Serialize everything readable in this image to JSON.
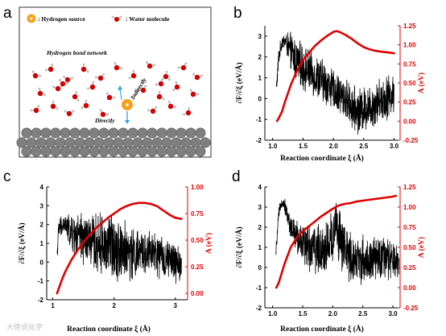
{
  "panel_letters": [
    "a",
    "b",
    "c",
    "d"
  ],
  "schematic": {
    "legend_hydrogen": ": Hydrogen source",
    "legend_water": ": Water molecule",
    "network_label": "Hydrogen bond network",
    "indirectly_label": "Indirectly",
    "directly_label": "Directly",
    "colors": {
      "hydrogen_source": "#f4a21e",
      "oxygen": "#d40000",
      "hydrogen": "#bdbdbd",
      "surface": "#7f7f7f",
      "arrow": "#29a8e0"
    }
  },
  "watermark": "大佬说化学",
  "colors": {
    "left_series": "#000000",
    "right_series": "#e00000",
    "right_axis": "#e00000"
  },
  "chart_data": [
    {
      "panel": "b",
      "type": "line",
      "xlabel": "Reaction coordinate ξ (Å)",
      "ylabel_left": "∂F/∂ξ (eV/Å)",
      "ylabel_right": "A (eV)",
      "xlim": [
        0.87,
        3.1
      ],
      "ylim_left": [
        -2,
        3.5
      ],
      "ylim_right": [
        -0.25,
        1.25
      ],
      "xticks": [
        "1.0",
        "1.5",
        "2.0",
        "2.5",
        "3.0"
      ],
      "xtick_values": [
        1.0,
        1.5,
        2.0,
        2.5,
        3.0
      ],
      "yticks_left": [
        "-2",
        "-1",
        "0",
        "1",
        "2",
        "3"
      ],
      "ytick_left_values": [
        -2,
        -1,
        0,
        1,
        2,
        3
      ],
      "yticks_right": [
        "-0.25",
        "0.00",
        "0.25",
        "0.50",
        "0.75",
        "1.00",
        "1.25"
      ],
      "ytick_right_values": [
        -0.25,
        0.0,
        0.25,
        0.5,
        0.75,
        1.0,
        1.25
      ],
      "series": [
        {
          "axis": "left",
          "noisy": true,
          "x": [
            1.06,
            1.1,
            1.15,
            1.2,
            1.25,
            1.3,
            1.4,
            1.5,
            1.6,
            1.7,
            1.8,
            1.9,
            2.0,
            2.1,
            2.2,
            2.3,
            2.4,
            2.5,
            2.6,
            2.7,
            2.8,
            2.9,
            3.0
          ],
          "y": [
            0.5,
            2.0,
            2.7,
            2.8,
            2.5,
            2.2,
            1.8,
            1.5,
            1.3,
            1.1,
            0.9,
            0.7,
            0.4,
            0.2,
            0.0,
            -0.4,
            -0.6,
            -0.5,
            -0.4,
            -0.2,
            0.0,
            0.1,
            0.2
          ],
          "amp": [
            0.3,
            0.4,
            0.3,
            0.3,
            0.6,
            0.8,
            0.9,
            0.9,
            0.9,
            0.9,
            0.9,
            0.9,
            0.8,
            0.8,
            0.8,
            0.9,
            0.9,
            0.9,
            0.9,
            0.9,
            0.9,
            0.9,
            0.8
          ]
        },
        {
          "axis": "right",
          "noisy": false,
          "x": [
            1.07,
            1.1,
            1.15,
            1.2,
            1.3,
            1.4,
            1.5,
            1.6,
            1.7,
            1.8,
            1.9,
            2.0,
            2.05,
            2.1,
            2.2,
            2.3,
            2.4,
            2.5,
            2.6,
            2.7,
            2.8,
            2.9,
            3.0
          ],
          "y": [
            0.0,
            0.04,
            0.12,
            0.25,
            0.48,
            0.66,
            0.8,
            0.9,
            0.99,
            1.06,
            1.12,
            1.17,
            1.18,
            1.17,
            1.13,
            1.08,
            1.02,
            0.97,
            0.94,
            0.92,
            0.91,
            0.9,
            0.89
          ]
        }
      ]
    },
    {
      "panel": "c",
      "type": "line",
      "xlabel": "Reaction coordinate ξ (Å)",
      "ylabel_left": "∂F/∂ξ (eV/Å)",
      "ylabel_right": "A (eV)",
      "xlim": [
        0.9,
        3.2
      ],
      "ylim_left": [
        -2,
        4
      ],
      "ylim_right": [
        -0.06,
        1.0
      ],
      "xticks": [
        "1",
        "2",
        "3"
      ],
      "xtick_values": [
        1,
        2,
        3
      ],
      "yticks_left": [
        "-2",
        "-1",
        "0",
        "1",
        "2",
        "3",
        "4"
      ],
      "ytick_left_values": [
        -2,
        -1,
        0,
        1,
        2,
        3,
        4
      ],
      "yticks_right": [
        "0.00",
        "0.25",
        "0.50",
        "0.75",
        "1.00"
      ],
      "ytick_right_values": [
        0.0,
        0.25,
        0.5,
        0.75,
        1.0
      ],
      "series": [
        {
          "axis": "left",
          "noisy": true,
          "x": [
            1.07,
            1.1,
            1.2,
            1.3,
            1.4,
            1.5,
            1.6,
            1.7,
            1.8,
            1.9,
            2.0,
            2.1,
            2.2,
            2.3,
            2.4,
            2.5,
            2.6,
            2.7,
            2.8,
            2.9,
            3.0,
            3.1
          ],
          "y": [
            0.5,
            1.8,
            2.0,
            1.5,
            1.3,
            1.2,
            1.1,
            1.0,
            0.9,
            0.9,
            0.9,
            0.7,
            0.6,
            0.4,
            0.4,
            0.5,
            0.5,
            0.3,
            0.2,
            0.1,
            0.0,
            -0.2
          ],
          "amp": [
            0.4,
            0.5,
            0.5,
            0.8,
            1.0,
            1.2,
            1.3,
            1.3,
            1.4,
            1.5,
            1.5,
            1.4,
            1.3,
            1.2,
            1.1,
            1.0,
            1.0,
            1.0,
            0.9,
            0.9,
            0.9,
            0.8
          ]
        },
        {
          "axis": "right",
          "noisy": false,
          "x": [
            1.07,
            1.1,
            1.15,
            1.2,
            1.3,
            1.4,
            1.5,
            1.6,
            1.7,
            1.8,
            1.9,
            2.0,
            2.1,
            2.2,
            2.3,
            2.4,
            2.5,
            2.6,
            2.7,
            2.8,
            2.9,
            3.0,
            3.1
          ],
          "y": [
            0.0,
            0.05,
            0.13,
            0.2,
            0.31,
            0.4,
            0.48,
            0.55,
            0.61,
            0.66,
            0.71,
            0.75,
            0.79,
            0.82,
            0.84,
            0.85,
            0.85,
            0.84,
            0.82,
            0.78,
            0.74,
            0.71,
            0.7
          ]
        }
      ]
    },
    {
      "panel": "d",
      "type": "line",
      "xlabel": "Reaction coordinate ξ (Å)",
      "ylabel_left": "∂F/∂ξ (eV/Å)",
      "ylabel_right": "A (eV)",
      "xlim": [
        0.87,
        3.12
      ],
      "ylim_left": [
        -2,
        4
      ],
      "ylim_right": [
        -0.25,
        1.25
      ],
      "xticks": [
        "1.0",
        "1.5",
        "2.0",
        "2.5",
        "3.0"
      ],
      "xtick_values": [
        1.0,
        1.5,
        2.0,
        2.5,
        3.0
      ],
      "yticks_left": [
        "-2",
        "-1",
        "0",
        "1",
        "2",
        "3",
        "4"
      ],
      "ytick_left_values": [
        -2,
        -1,
        0,
        1,
        2,
        3,
        4
      ],
      "yticks_right": [
        "-0.25",
        "0.00",
        "0.25",
        "0.50",
        "0.75",
        "1.00",
        "1.25"
      ],
      "ytick_right_values": [
        -0.25,
        0.0,
        0.25,
        0.5,
        0.75,
        1.0,
        1.25
      ],
      "series": [
        {
          "axis": "left",
          "noisy": true,
          "x": [
            1.05,
            1.1,
            1.15,
            1.2,
            1.25,
            1.3,
            1.4,
            1.5,
            1.6,
            1.7,
            1.8,
            1.9,
            2.0,
            2.05,
            2.1,
            2.2,
            2.3,
            2.4,
            2.5,
            2.6,
            2.7,
            2.8,
            2.9,
            3.0,
            3.1
          ],
          "y": [
            0.6,
            2.6,
            3.3,
            3.1,
            2.5,
            2.0,
            1.5,
            1.3,
            1.0,
            0.9,
            0.9,
            1.0,
            1.5,
            2.4,
            1.5,
            0.8,
            0.5,
            0.4,
            0.4,
            0.3,
            0.4,
            0.5,
            0.4,
            0.3,
            0.2
          ],
          "amp": [
            0.2,
            0.3,
            0.2,
            0.3,
            0.4,
            0.5,
            0.8,
            0.9,
            1.0,
            1.0,
            1.1,
            1.2,
            1.3,
            1.0,
            1.3,
            1.2,
            1.1,
            1.0,
            1.0,
            0.9,
            0.9,
            0.9,
            0.9,
            0.8,
            0.8
          ]
        },
        {
          "axis": "right",
          "noisy": false,
          "x": [
            1.06,
            1.1,
            1.15,
            1.2,
            1.3,
            1.4,
            1.5,
            1.6,
            1.7,
            1.8,
            1.9,
            2.0,
            2.1,
            2.2,
            2.3,
            2.4,
            2.5,
            2.6,
            2.7,
            2.8,
            2.9,
            3.0,
            3.05
          ],
          "y": [
            0.0,
            0.06,
            0.18,
            0.3,
            0.5,
            0.62,
            0.7,
            0.76,
            0.82,
            0.88,
            0.93,
            0.98,
            1.02,
            1.04,
            1.05,
            1.07,
            1.08,
            1.09,
            1.1,
            1.11,
            1.12,
            1.13,
            1.14
          ]
        }
      ]
    }
  ]
}
